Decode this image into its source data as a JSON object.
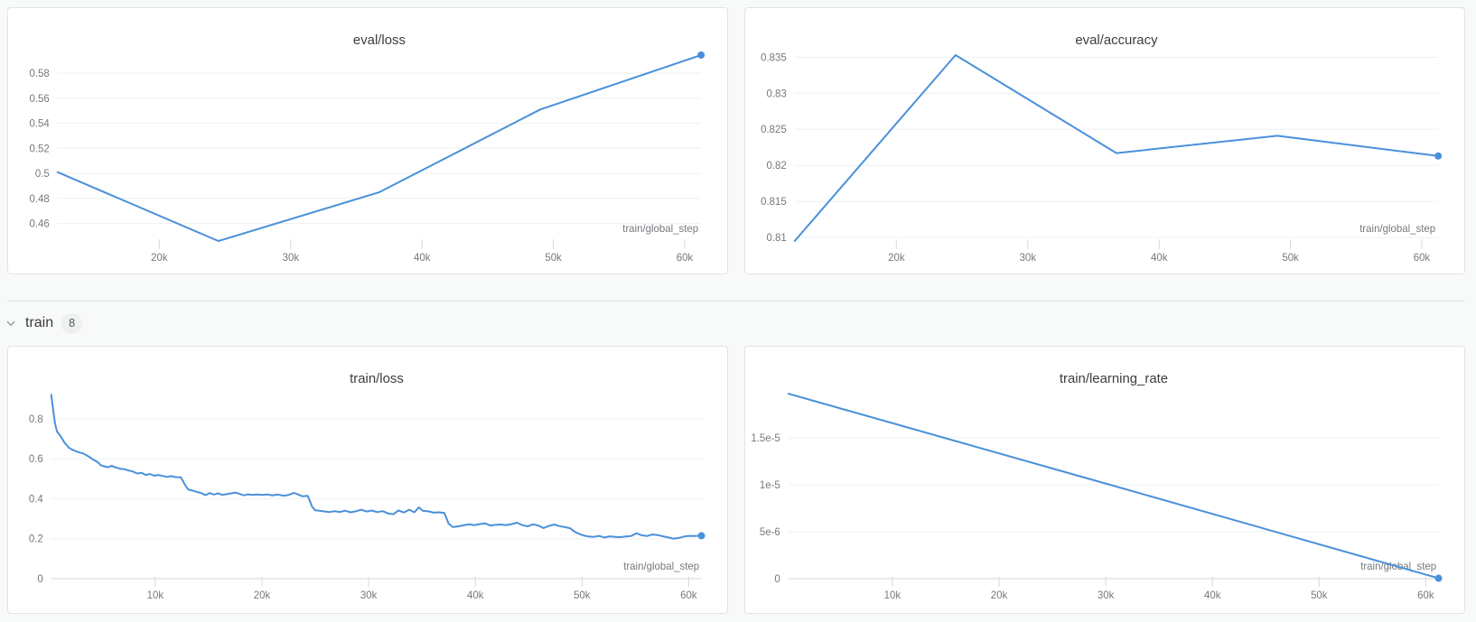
{
  "page": {
    "background": "#f8f9f9",
    "card_background": "#ffffff"
  },
  "colors": {
    "accent_line": "#4a90d9",
    "gridline": "#eef0f1",
    "axis_line": "#dcdddd",
    "tick_mark": "#d9dadb",
    "tick_text": "#75797d",
    "title_text": "#3a3d40",
    "axis_label_text": "#75797d"
  },
  "train_section": {
    "label": "train",
    "count": "8",
    "chevron_icon": "chevron-down"
  },
  "chart_data": [
    {
      "id": "eval-loss",
      "type": "line",
      "title": "eval/loss",
      "xlabel": "train/global_step",
      "x_range": [
        12250,
        61250
      ],
      "y_range": [
        0.446,
        0.5945
      ],
      "x_ticks": [
        {
          "value": 20000,
          "label": "20k"
        },
        {
          "value": 30000,
          "label": "30k"
        },
        {
          "value": 40000,
          "label": "40k"
        },
        {
          "value": 50000,
          "label": "50k"
        },
        {
          "value": 60000,
          "label": "60k"
        }
      ],
      "y_ticks": [
        {
          "value": 0.46,
          "label": "0.46"
        },
        {
          "value": 0.48,
          "label": "0.48"
        },
        {
          "value": 0.5,
          "label": "0.5"
        },
        {
          "value": 0.52,
          "label": "0.52"
        },
        {
          "value": 0.54,
          "label": "0.54"
        },
        {
          "value": 0.56,
          "label": "0.56"
        },
        {
          "value": 0.58,
          "label": "0.58"
        }
      ],
      "bottom_axis": false,
      "end_marker": true,
      "points": [
        [
          12250,
          0.501
        ],
        [
          24500,
          0.446
        ],
        [
          36750,
          0.485
        ],
        [
          49000,
          0.551
        ],
        [
          61250,
          0.5945
        ]
      ]
    },
    {
      "id": "eval-accuracy",
      "type": "line",
      "title": "eval/accuracy",
      "xlabel": "train/global_step",
      "x_range": [
        12250,
        61250
      ],
      "y_range": [
        0.8095,
        0.8353
      ],
      "x_ticks": [
        {
          "value": 20000,
          "label": "20k"
        },
        {
          "value": 30000,
          "label": "30k"
        },
        {
          "value": 40000,
          "label": "40k"
        },
        {
          "value": 50000,
          "label": "50k"
        },
        {
          "value": 60000,
          "label": "60k"
        }
      ],
      "y_ticks": [
        {
          "value": 0.81,
          "label": "0.81"
        },
        {
          "value": 0.815,
          "label": "0.815"
        },
        {
          "value": 0.82,
          "label": "0.82"
        },
        {
          "value": 0.825,
          "label": "0.825"
        },
        {
          "value": 0.83,
          "label": "0.83"
        },
        {
          "value": 0.835,
          "label": "0.835"
        }
      ],
      "bottom_axis": false,
      "end_marker": true,
      "points": [
        [
          12250,
          0.8095
        ],
        [
          24500,
          0.8353
        ],
        [
          36750,
          0.8217
        ],
        [
          49000,
          0.8241
        ],
        [
          61250,
          0.8213
        ]
      ]
    },
    {
      "id": "train-loss",
      "type": "line",
      "title": "train/loss",
      "xlabel": "train/global_step",
      "x_range": [
        250,
        61250
      ],
      "y_range": [
        0,
        0.935
      ],
      "x_ticks": [
        {
          "value": 10000,
          "label": "10k"
        },
        {
          "value": 20000,
          "label": "20k"
        },
        {
          "value": 30000,
          "label": "30k"
        },
        {
          "value": 40000,
          "label": "40k"
        },
        {
          "value": 50000,
          "label": "50k"
        },
        {
          "value": 60000,
          "label": "60k"
        }
      ],
      "y_ticks": [
        {
          "value": 0,
          "label": "0"
        },
        {
          "value": 0.2,
          "label": "0.2"
        },
        {
          "value": 0.4,
          "label": "0.4"
        },
        {
          "value": 0.6,
          "label": "0.6"
        },
        {
          "value": 0.8,
          "label": "0.8"
        }
      ],
      "bottom_axis": true,
      "end_marker": true,
      "points": [
        [
          250,
          0.92
        ],
        [
          400,
          0.855
        ],
        [
          600,
          0.775
        ],
        [
          800,
          0.735
        ],
        [
          1100,
          0.715
        ],
        [
          1500,
          0.68
        ],
        [
          1900,
          0.655
        ],
        [
          2300,
          0.643
        ],
        [
          2800,
          0.633
        ],
        [
          3300,
          0.625
        ],
        [
          3800,
          0.61
        ],
        [
          4200,
          0.595
        ],
        [
          4600,
          0.583
        ],
        [
          4900,
          0.568
        ],
        [
          5200,
          0.562
        ],
        [
          5600,
          0.558
        ],
        [
          5900,
          0.565
        ],
        [
          6300,
          0.556
        ],
        [
          6700,
          0.55
        ],
        [
          7100,
          0.548
        ],
        [
          7500,
          0.541
        ],
        [
          7900,
          0.536
        ],
        [
          8300,
          0.526
        ],
        [
          8700,
          0.53
        ],
        [
          9100,
          0.519
        ],
        [
          9500,
          0.524
        ],
        [
          9900,
          0.515
        ],
        [
          10300,
          0.519
        ],
        [
          10700,
          0.514
        ],
        [
          11100,
          0.509
        ],
        [
          11500,
          0.513
        ],
        [
          11900,
          0.508
        ],
        [
          12400,
          0.507
        ],
        [
          12800,
          0.468
        ],
        [
          13100,
          0.446
        ],
        [
          13500,
          0.441
        ],
        [
          13900,
          0.434
        ],
        [
          14300,
          0.428
        ],
        [
          14700,
          0.418
        ],
        [
          15100,
          0.428
        ],
        [
          15500,
          0.421
        ],
        [
          15900,
          0.427
        ],
        [
          16300,
          0.419
        ],
        [
          16700,
          0.423
        ],
        [
          17100,
          0.427
        ],
        [
          17500,
          0.431
        ],
        [
          17900,
          0.424
        ],
        [
          18300,
          0.417
        ],
        [
          18700,
          0.422
        ],
        [
          19100,
          0.419
        ],
        [
          19500,
          0.421
        ],
        [
          20000,
          0.419
        ],
        [
          20500,
          0.421
        ],
        [
          21000,
          0.417
        ],
        [
          21500,
          0.421
        ],
        [
          22000,
          0.415
        ],
        [
          22500,
          0.419
        ],
        [
          23000,
          0.429
        ],
        [
          23400,
          0.421
        ],
        [
          23800,
          0.412
        ],
        [
          24300,
          0.414
        ],
        [
          24700,
          0.36
        ],
        [
          25000,
          0.342
        ],
        [
          25400,
          0.34
        ],
        [
          25800,
          0.337
        ],
        [
          26300,
          0.333
        ],
        [
          26800,
          0.338
        ],
        [
          27300,
          0.334
        ],
        [
          27800,
          0.34
        ],
        [
          28300,
          0.332
        ],
        [
          28800,
          0.337
        ],
        [
          29300,
          0.345
        ],
        [
          29800,
          0.336
        ],
        [
          30300,
          0.341
        ],
        [
          30800,
          0.333
        ],
        [
          31300,
          0.338
        ],
        [
          31800,
          0.327
        ],
        [
          32300,
          0.322
        ],
        [
          32800,
          0.341
        ],
        [
          33300,
          0.331
        ],
        [
          33800,
          0.345
        ],
        [
          34300,
          0.332
        ],
        [
          34700,
          0.357
        ],
        [
          35100,
          0.339
        ],
        [
          35600,
          0.337
        ],
        [
          36100,
          0.33
        ],
        [
          36600,
          0.332
        ],
        [
          37100,
          0.329
        ],
        [
          37500,
          0.275
        ],
        [
          37900,
          0.258
        ],
        [
          38400,
          0.262
        ],
        [
          38900,
          0.267
        ],
        [
          39400,
          0.272
        ],
        [
          39900,
          0.268
        ],
        [
          40400,
          0.273
        ],
        [
          40900,
          0.277
        ],
        [
          41400,
          0.266
        ],
        [
          41900,
          0.269
        ],
        [
          42400,
          0.271
        ],
        [
          42900,
          0.268
        ],
        [
          43400,
          0.273
        ],
        [
          43900,
          0.28
        ],
        [
          44400,
          0.268
        ],
        [
          44900,
          0.262
        ],
        [
          45400,
          0.272
        ],
        [
          45900,
          0.266
        ],
        [
          46400,
          0.253
        ],
        [
          46900,
          0.264
        ],
        [
          47400,
          0.271
        ],
        [
          47900,
          0.263
        ],
        [
          48400,
          0.258
        ],
        [
          48900,
          0.252
        ],
        [
          49300,
          0.235
        ],
        [
          49700,
          0.225
        ],
        [
          50100,
          0.217
        ],
        [
          50600,
          0.211
        ],
        [
          51100,
          0.209
        ],
        [
          51600,
          0.214
        ],
        [
          52100,
          0.206
        ],
        [
          52600,
          0.212
        ],
        [
          53100,
          0.209
        ],
        [
          53600,
          0.208
        ],
        [
          54100,
          0.211
        ],
        [
          54600,
          0.213
        ],
        [
          55100,
          0.227
        ],
        [
          55600,
          0.217
        ],
        [
          56100,
          0.213
        ],
        [
          56600,
          0.221
        ],
        [
          57100,
          0.218
        ],
        [
          57600,
          0.212
        ],
        [
          58100,
          0.206
        ],
        [
          58600,
          0.2
        ],
        [
          59100,
          0.204
        ],
        [
          59600,
          0.211
        ],
        [
          60100,
          0.214
        ],
        [
          60600,
          0.213
        ],
        [
          61200,
          0.215
        ]
      ]
    },
    {
      "id": "train-learning-rate",
      "type": "line",
      "title": "train/learning_rate",
      "xlabel": "train/global_step",
      "x_range": [
        250,
        61250
      ],
      "y_range": [
        0,
        1.99e-05
      ],
      "x_ticks": [
        {
          "value": 10000,
          "label": "10k"
        },
        {
          "value": 20000,
          "label": "20k"
        },
        {
          "value": 30000,
          "label": "30k"
        },
        {
          "value": 40000,
          "label": "40k"
        },
        {
          "value": 50000,
          "label": "50k"
        },
        {
          "value": 60000,
          "label": "60k"
        }
      ],
      "y_ticks": [
        {
          "value": 0,
          "label": "0"
        },
        {
          "value": 5e-06,
          "label": "5e-6"
        },
        {
          "value": 1e-05,
          "label": "1e-5"
        },
        {
          "value": 1.5e-05,
          "label": "1.5e-5"
        }
      ],
      "bottom_axis": true,
      "end_marker": true,
      "points": [
        [
          250,
          1.97e-05
        ],
        [
          30700,
          9.9e-06
        ],
        [
          61200,
          5e-08
        ]
      ]
    }
  ]
}
